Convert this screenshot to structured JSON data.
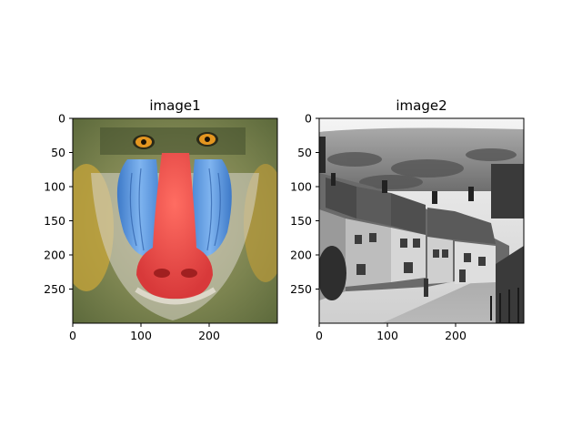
{
  "chart_data": [
    {
      "type": "image",
      "title": "image1",
      "content": "mandrill-color-photo",
      "xticks": [
        0,
        100,
        200
      ],
      "yticks": [
        0,
        50,
        100,
        150,
        200,
        250
      ],
      "xlim": [
        0,
        300
      ],
      "ylim": [
        300,
        0
      ]
    },
    {
      "type": "image",
      "title": "image2",
      "content": "grayscale-village-street-photo",
      "xticks": [
        0,
        100,
        200
      ],
      "yticks": [
        0,
        50,
        100,
        150,
        200,
        250
      ],
      "xlim": [
        0,
        300
      ],
      "ylim": [
        300,
        0
      ]
    }
  ]
}
